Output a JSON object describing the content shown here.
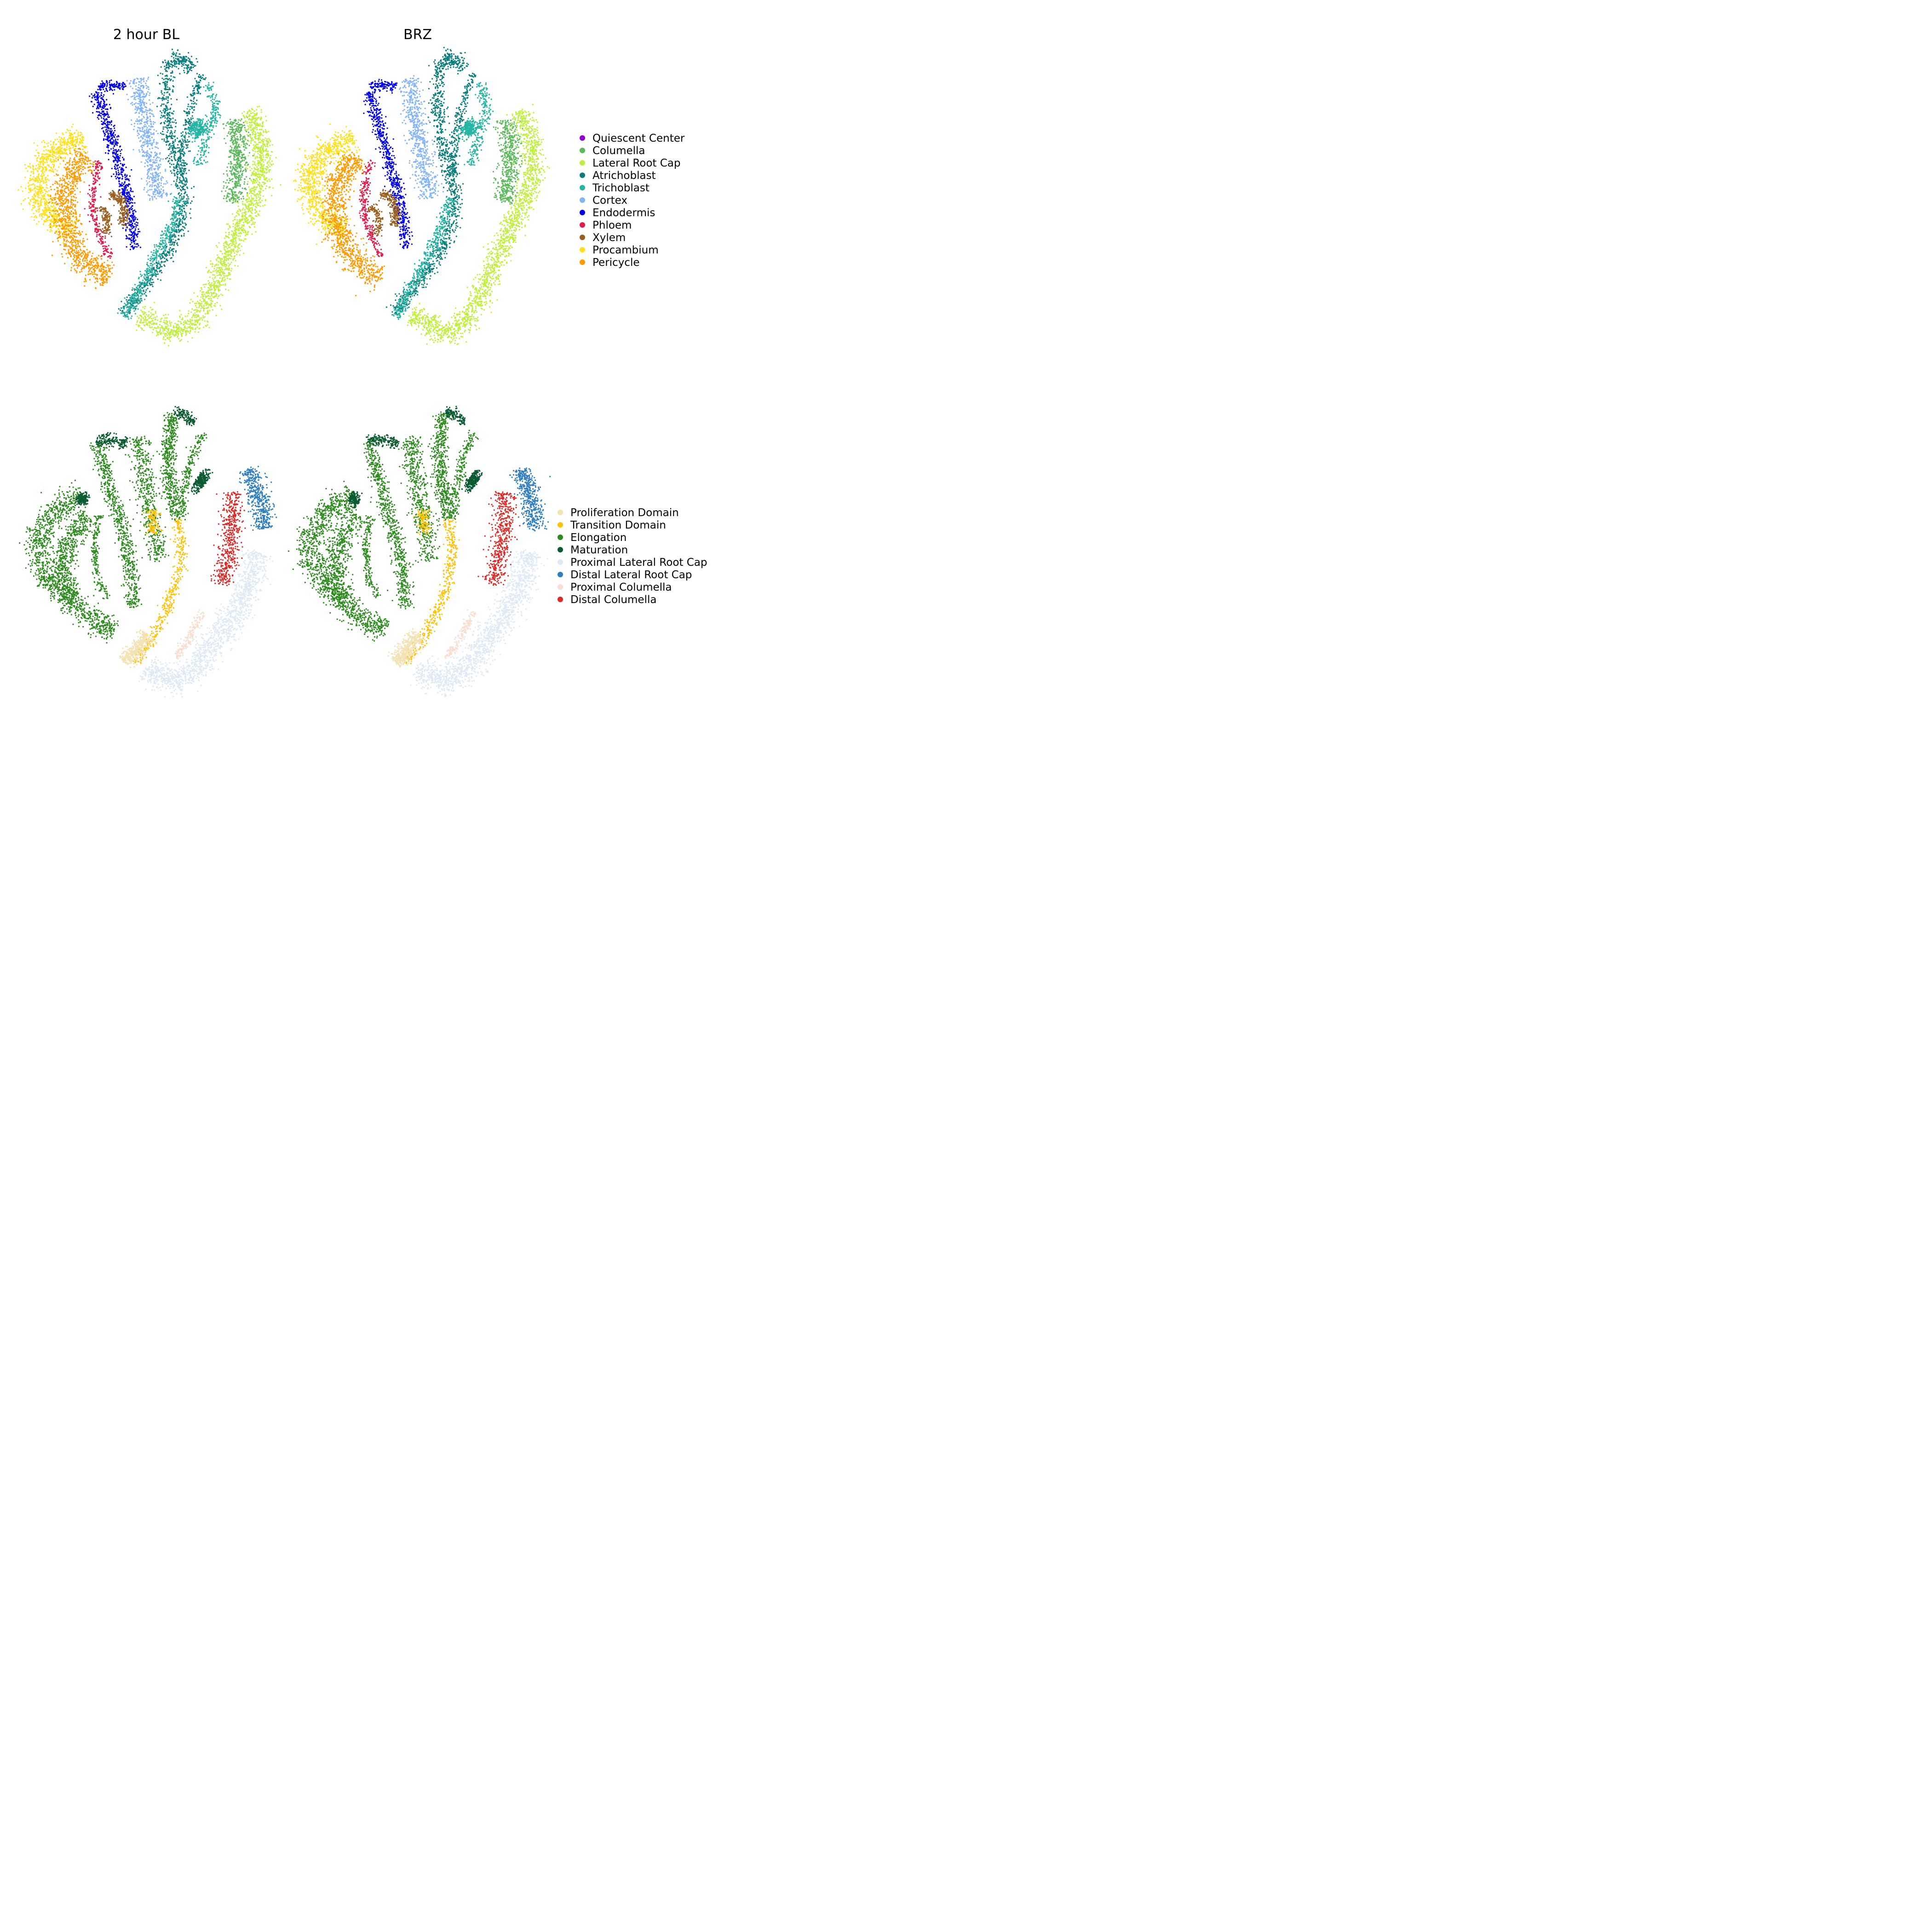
{
  "figure": {
    "panel_titles": [
      "2  hour  BL",
      "BRZ"
    ]
  },
  "legends": {
    "cell_type": [
      {
        "label": "Quiescent Center",
        "color": "#9400d3"
      },
      {
        "label": "Columella",
        "color": "#5cb85c"
      },
      {
        "label": "Lateral Root Cap",
        "color": "#bff03f"
      },
      {
        "label": "Atrichoblast",
        "color": "#0b7d7d"
      },
      {
        "label": "Trichoblast",
        "color": "#26b4a4"
      },
      {
        "label": "Cortex",
        "color": "#82b4fa"
      },
      {
        "label": "Endodermis",
        "color": "#0000ee"
      },
      {
        "label": "Phloem",
        "color": "#e41a4a"
      },
      {
        "label": "Xylem",
        "color": "#9a5f1e"
      },
      {
        "label": "Procambium",
        "color": "#ffe01a"
      },
      {
        "label": "Pericycle",
        "color": "#ff9a00"
      }
    ],
    "developmental_zone": [
      {
        "label": "Proliferation Domain",
        "color": "#f3e2b2"
      },
      {
        "label": "Transition Domain",
        "color": "#ffc20a"
      },
      {
        "label": "Elongation",
        "color": "#2e8b1f"
      },
      {
        "label": "Maturation",
        "color": "#0a5a32"
      },
      {
        "label": "Proximal Lateral Root Cap",
        "color": "#dde9f6"
      },
      {
        "label": "Distal Lateral Root Cap",
        "color": "#2f7fc0"
      },
      {
        "label": "Proximal Columella",
        "color": "#fbdccd"
      },
      {
        "label": "Distal Columella",
        "color": "#dd2a26"
      }
    ]
  },
  "chart_data": [
    {
      "type": "scatter",
      "title": "2  hour  BL",
      "xlabel": "",
      "ylabel": "",
      "axes": "hidden",
      "grid": false,
      "color_by": "cell type",
      "legend_placement": "right",
      "series": [
        {
          "name": "Quiescent Center"
        },
        {
          "name": "Columella"
        },
        {
          "name": "Lateral Root Cap"
        },
        {
          "name": "Atrichoblast"
        },
        {
          "name": "Trichoblast"
        },
        {
          "name": "Cortex"
        },
        {
          "name": "Endodermis"
        },
        {
          "name": "Phloem"
        },
        {
          "name": "Xylem"
        },
        {
          "name": "Procambium"
        },
        {
          "name": "Pericycle"
        }
      ]
    },
    {
      "type": "scatter",
      "title": "BRZ",
      "xlabel": "",
      "ylabel": "",
      "axes": "hidden",
      "grid": false,
      "color_by": "cell type",
      "legend_placement": "right",
      "series": [
        {
          "name": "Quiescent Center"
        },
        {
          "name": "Columella"
        },
        {
          "name": "Lateral Root Cap"
        },
        {
          "name": "Atrichoblast"
        },
        {
          "name": "Trichoblast"
        },
        {
          "name": "Cortex"
        },
        {
          "name": "Endodermis"
        },
        {
          "name": "Phloem"
        },
        {
          "name": "Xylem"
        },
        {
          "name": "Procambium"
        },
        {
          "name": "Pericycle"
        }
      ]
    },
    {
      "type": "scatter",
      "title": "",
      "xlabel": "",
      "ylabel": "",
      "axes": "hidden",
      "grid": false,
      "color_by": "developmental zone",
      "legend_placement": "right",
      "series": [
        {
          "name": "Proliferation Domain"
        },
        {
          "name": "Transition Domain"
        },
        {
          "name": "Elongation"
        },
        {
          "name": "Maturation"
        },
        {
          "name": "Proximal Lateral Root Cap"
        },
        {
          "name": "Distal Lateral Root Cap"
        },
        {
          "name": "Proximal Columella"
        },
        {
          "name": "Distal Columella"
        }
      ]
    },
    {
      "type": "scatter",
      "title": "",
      "xlabel": "",
      "ylabel": "",
      "axes": "hidden",
      "grid": false,
      "color_by": "developmental zone",
      "legend_placement": "right",
      "series": [
        {
          "name": "Proliferation Domain"
        },
        {
          "name": "Transition Domain"
        },
        {
          "name": "Elongation"
        },
        {
          "name": "Maturation"
        },
        {
          "name": "Proximal Lateral Root Cap"
        },
        {
          "name": "Distal Lateral Root Cap"
        },
        {
          "name": "Proximal Columella"
        },
        {
          "name": "Distal Columella"
        }
      ]
    }
  ]
}
